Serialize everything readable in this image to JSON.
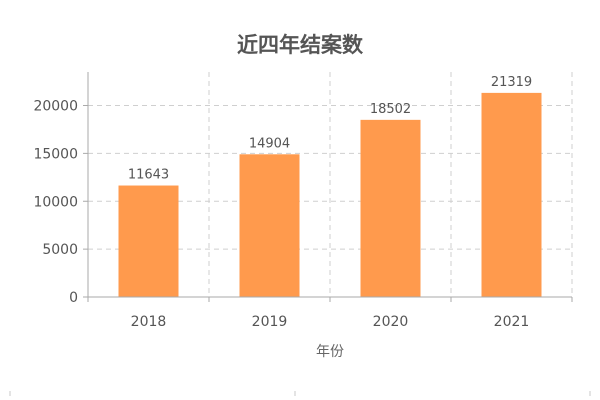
{
  "chart_data": {
    "type": "bar",
    "title": "近四年结案数",
    "xlabel": "年份",
    "ylabel": "",
    "categories": [
      "2018",
      "2019",
      "2020",
      "2021"
    ],
    "values": [
      11643,
      14904,
      18502,
      21319
    ],
    "ylim": [
      0,
      23500
    ],
    "yticks": [
      0,
      5000,
      10000,
      15000,
      20000
    ],
    "grid": true,
    "legend": "none",
    "bar_color": "#ff9a4d"
  }
}
